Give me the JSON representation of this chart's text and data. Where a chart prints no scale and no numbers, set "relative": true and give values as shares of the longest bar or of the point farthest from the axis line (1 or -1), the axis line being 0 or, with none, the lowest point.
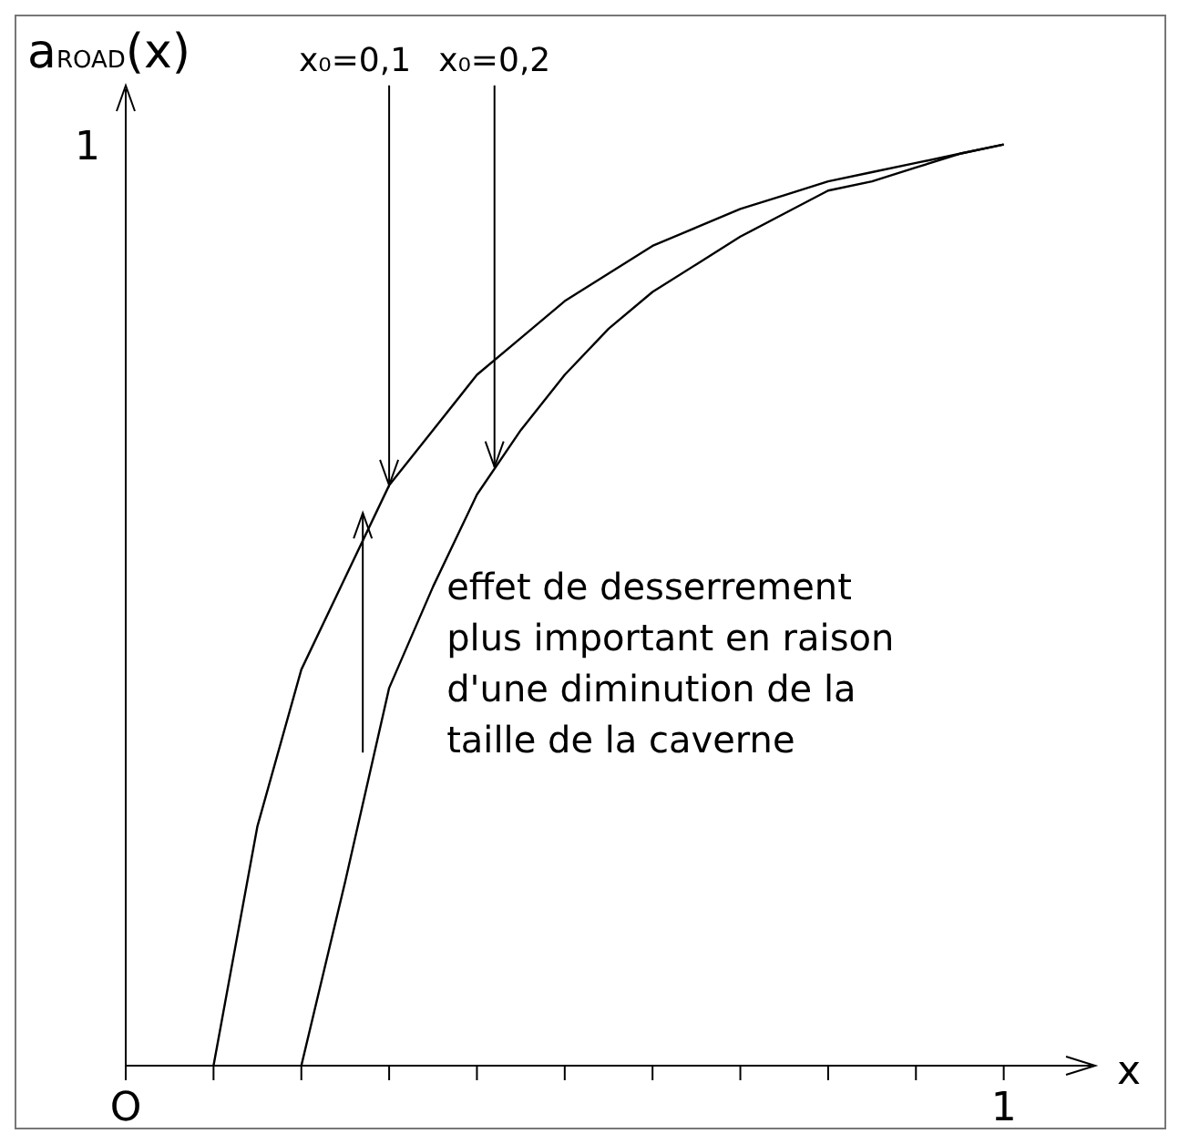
{
  "chart_data": {
    "type": "line",
    "relative": true,
    "xlabel": "x",
    "ylabel": "a$_{ROAD}$(x)",
    "categories": [
      null,
      null,
      null,
      null,
      null,
      null,
      null,
      null,
      null,
      null,
      null,
      null,
      null,
      null,
      null,
      null,
      null,
      null,
      null,
      null,
      null
    ],
    "marker": "none",
    "line_style": "solid",
    "series": [
      {
        "color": "#000000",
        "values": [
          null,
          null,
          0,
          0.26,
          0.43,
          0.53,
          0.63,
          0.69,
          0.75,
          0.79,
          0.83,
          0.86,
          0.89,
          0.91,
          0.93,
          0.945,
          0.96,
          0.97,
          0.98,
          0.99,
          1
        ]
      },
      {
        "color": "#000000",
        "values": [
          null,
          null,
          null,
          null,
          0,
          0.2,
          0.41,
          0.52,
          0.62,
          0.69,
          0.75,
          0.8,
          0.84,
          0.87,
          0.9,
          0.925,
          0.95,
          0.96,
          0.975,
          0.99,
          1
        ]
      }
    ],
    "annotations": [
      "x₀=0,1",
      "x₀=0,2",
      "effet de desserrement plus important en raison d'une diminution de la taille de la caverne",
      "O",
      "1",
      "1"
    ]
  }
}
